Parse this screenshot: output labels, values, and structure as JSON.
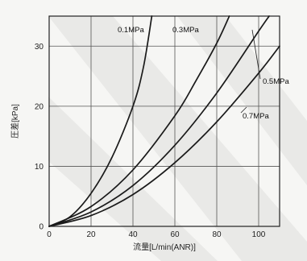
{
  "chart_data": {
    "type": "line",
    "xlabel": "流量[L/min(ANR)]",
    "ylabel": "圧差[kPa]",
    "xlim": [
      0,
      110
    ],
    "ylim": [
      0,
      35
    ],
    "x_ticks": [
      0,
      20,
      40,
      60,
      80,
      100
    ],
    "y_ticks": [
      0,
      10,
      20,
      30
    ],
    "grid": true,
    "line_color": "#1a1a1a",
    "grid_color": "#555555",
    "series": [
      {
        "name": "0.1MPa",
        "x": [
          0,
          10,
          20,
          30,
          40,
          45,
          49
        ],
        "y": [
          0,
          1.6,
          5.5,
          11.5,
          20,
          26.5,
          35
        ]
      },
      {
        "name": "0.3MPa",
        "x": [
          0,
          20,
          40,
          60,
          70,
          80,
          86
        ],
        "y": [
          0,
          3.3,
          9.4,
          18.4,
          24.2,
          30.5,
          35
        ]
      },
      {
        "name": "0.5MPa",
        "x": [
          0,
          20,
          40,
          60,
          80,
          100,
          105
        ],
        "y": [
          0,
          2.4,
          6.8,
          13.5,
          22.2,
          32.5,
          35
        ]
      },
      {
        "name": "0.7MPa",
        "x": [
          0,
          20,
          40,
          60,
          80,
          100,
          110
        ],
        "y": [
          0,
          1.8,
          5.3,
          10.6,
          17.4,
          25.5,
          30
        ]
      }
    ]
  }
}
